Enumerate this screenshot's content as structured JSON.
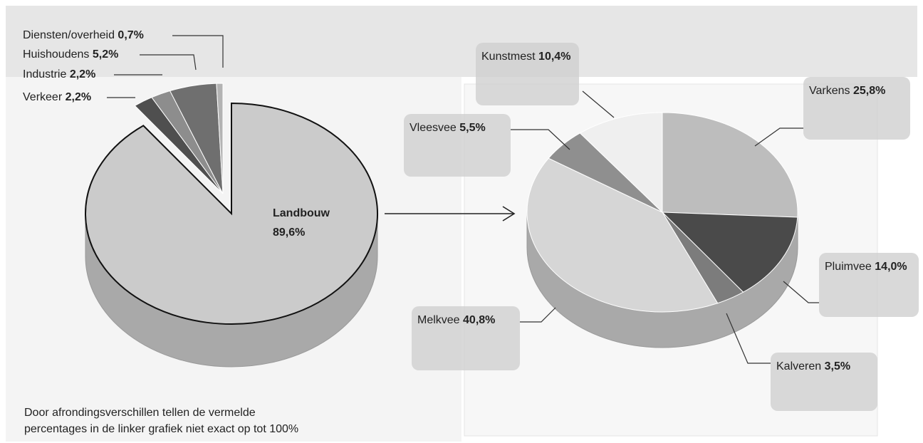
{
  "chart_data": [
    {
      "type": "pie",
      "categories": [
        "Landbouw",
        "Verkeer",
        "Industrie",
        "Huishoudens",
        "Diensten/overheid"
      ],
      "values": [
        89.6,
        2.2,
        2.2,
        5.2,
        0.7
      ],
      "value_labels": [
        "89,6%",
        "2,2%",
        "2,2%",
        "5,2%",
        "0,7%"
      ],
      "colors": [
        "#cbcbcb",
        "#4f4f4f",
        "#8d8d8d",
        "#6f6f6f",
        "#b3b3b3"
      ],
      "annotation": [
        "Door afrondingsverschillen tellen de vermelde",
        "percentages in de linker grafiek niet exact op tot 100%"
      ]
    },
    {
      "type": "pie",
      "categories": [
        "Varkens",
        "Pluimvee",
        "Kalveren",
        "Melkvee",
        "Vleesvee",
        "Kunstmest"
      ],
      "values": [
        25.8,
        14.0,
        3.5,
        40.8,
        5.5,
        10.4
      ],
      "value_labels": [
        "25,8%",
        "14,0%",
        "3,5%",
        "40,8%",
        "5,5%",
        "10,4%"
      ],
      "colors": [
        "#bdbdbd",
        "#4a4a4a",
        "#7c7c7c",
        "#d6d6d6",
        "#8f8f8f",
        "#efefef"
      ]
    }
  ]
}
